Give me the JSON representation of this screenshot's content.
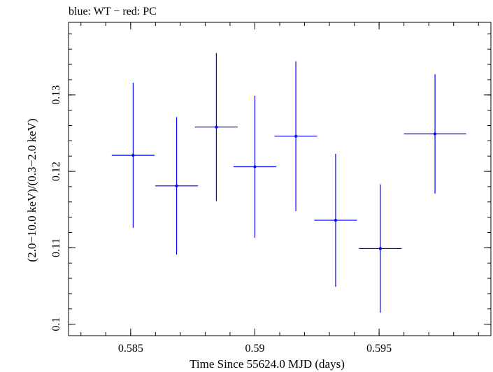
{
  "chart_data": {
    "type": "scatter",
    "title": "blue: WT − red: PC",
    "xlabel": "Time Since 55624.0 MJD (days)",
    "ylabel": "(2.0−10.0 keV)/(0.3−2.0 keV)",
    "xlim": [
      0.5825,
      0.5995
    ],
    "ylim": [
      0.0985,
      0.1395
    ],
    "x_ticks": [
      0.585,
      0.59,
      0.595
    ],
    "x_tick_labels": [
      "0.585",
      "0.59",
      "0.595"
    ],
    "y_ticks": [
      0.1,
      0.11,
      0.12,
      0.13
    ],
    "y_tick_labels": [
      "0.1",
      "0.11",
      "0.12",
      "0.13"
    ],
    "grid": false,
    "series": [
      {
        "color": "#0000ff",
        "points": [
          {
            "x": 0.5851,
            "xerr": 0.00086,
            "y": 0.1221,
            "yerr": 0.0095
          },
          {
            "x": 0.58685,
            "xerr": 0.00086,
            "y": 0.1181,
            "yerr": 0.009
          },
          {
            "x": 0.58845,
            "xerr": 0.00086,
            "y": 0.1258,
            "yerr": 0.0097
          },
          {
            "x": 0.59,
            "xerr": 0.00086,
            "y": 0.1206,
            "yerr": 0.0093
          },
          {
            "x": 0.59165,
            "xerr": 0.00086,
            "y": 0.1246,
            "yerr": 0.0098
          },
          {
            "x": 0.59325,
            "xerr": 0.00086,
            "y": 0.1136,
            "yerr": 0.0087
          },
          {
            "x": 0.59505,
            "xerr": 0.00086,
            "y": 0.1099,
            "yerr": 0.0084
          },
          {
            "x": 0.59725,
            "xerr": 0.00125,
            "y": 0.1249,
            "yerr": 0.0078
          }
        ]
      }
    ]
  }
}
